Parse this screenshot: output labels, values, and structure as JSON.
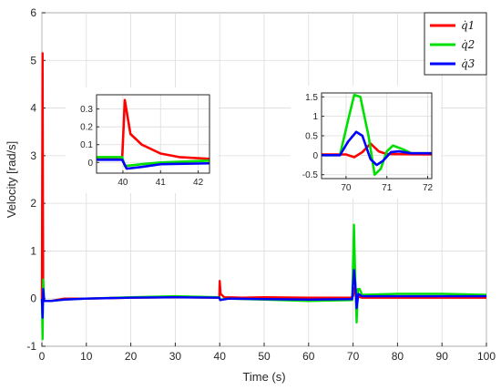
{
  "chart_data": {
    "type": "line",
    "xlabel": "Time (s)",
    "ylabel": "Velocity [rad/s]",
    "xlim": [
      0,
      100
    ],
    "ylim": [
      -1,
      6
    ],
    "xticks": [
      "0",
      "10",
      "20",
      "30",
      "40",
      "50",
      "60",
      "70",
      "80",
      "90",
      "100"
    ],
    "yticks": [
      "-1",
      "0",
      "1",
      "2",
      "3",
      "4",
      "5",
      "6"
    ],
    "grid": true,
    "legend_position": "top-right",
    "series": [
      {
        "name": "q̇1",
        "color": "#ff0000",
        "points": [
          [
            0,
            0
          ],
          [
            0.15,
            5.15
          ],
          [
            0.3,
            0
          ],
          [
            0.6,
            -0.05
          ],
          [
            2,
            -0.05
          ],
          [
            5,
            0.0
          ],
          [
            10,
            0.0
          ],
          [
            20,
            0.02
          ],
          [
            30,
            0.03
          ],
          [
            39.9,
            0.02
          ],
          [
            40.0,
            0.37
          ],
          [
            40.2,
            0.1
          ],
          [
            41,
            0.03
          ],
          [
            45,
            0.02
          ],
          [
            50,
            0.03
          ],
          [
            60,
            0.02
          ],
          [
            69.5,
            0.02
          ],
          [
            70.0,
            0.05
          ],
          [
            70.5,
            0.25
          ],
          [
            71,
            0.05
          ],
          [
            72,
            0.02
          ],
          [
            80,
            0.02
          ],
          [
            90,
            0.02
          ],
          [
            100,
            0.02
          ]
        ]
      },
      {
        "name": "q̇2",
        "color": "#00e000",
        "points": [
          [
            0,
            0
          ],
          [
            0.15,
            -0.85
          ],
          [
            0.3,
            0.4
          ],
          [
            0.5,
            -0.05
          ],
          [
            2,
            -0.05
          ],
          [
            5,
            -0.02
          ],
          [
            10,
            0.0
          ],
          [
            20,
            0.03
          ],
          [
            30,
            0.05
          ],
          [
            39.9,
            0.03
          ],
          [
            40.1,
            -0.02
          ],
          [
            42,
            0.0
          ],
          [
            50,
            -0.02
          ],
          [
            60,
            -0.05
          ],
          [
            69.8,
            -0.03
          ],
          [
            70.2,
            1.55
          ],
          [
            70.5,
            0.4
          ],
          [
            70.8,
            -0.5
          ],
          [
            71.1,
            0.2
          ],
          [
            71.5,
            0.2
          ],
          [
            72,
            0.08
          ],
          [
            80,
            0.1
          ],
          [
            90,
            0.1
          ],
          [
            100,
            0.08
          ]
        ]
      },
      {
        "name": "q̇3",
        "color": "#0000ff",
        "points": [
          [
            0,
            0
          ],
          [
            0.15,
            -0.4
          ],
          [
            0.3,
            0.2
          ],
          [
            0.5,
            -0.05
          ],
          [
            2,
            -0.05
          ],
          [
            5,
            -0.02
          ],
          [
            10,
            0.0
          ],
          [
            20,
            0.02
          ],
          [
            30,
            0.03
          ],
          [
            39.9,
            0.02
          ],
          [
            40.1,
            -0.03
          ],
          [
            42,
            0.0
          ],
          [
            50,
            -0.01
          ],
          [
            60,
            -0.02
          ],
          [
            69.8,
            -0.01
          ],
          [
            70.2,
            0.6
          ],
          [
            70.5,
            0.3
          ],
          [
            70.8,
            -0.2
          ],
          [
            71.2,
            0.1
          ],
          [
            72,
            0.05
          ],
          [
            80,
            0.05
          ],
          [
            90,
            0.05
          ],
          [
            100,
            0.05
          ]
        ]
      }
    ],
    "insets": [
      {
        "xlim": [
          39.3,
          42.3
        ],
        "ylim": [
          -0.06,
          0.38
        ],
        "xticks": [
          "40",
          "41",
          "42"
        ],
        "yticks": [
          "0",
          "0.1",
          "0.2",
          "0.3"
        ],
        "series": [
          {
            "name": "q̇1",
            "color": "#ff0000",
            "points": [
              [
                39.3,
                0.02
              ],
              [
                39.98,
                0.02
              ],
              [
                40.05,
                0.35
              ],
              [
                40.2,
                0.16
              ],
              [
                40.5,
                0.1
              ],
              [
                41,
                0.05
              ],
              [
                41.5,
                0.03
              ],
              [
                42.3,
                0.02
              ]
            ]
          },
          {
            "name": "q̇2",
            "color": "#00e000",
            "points": [
              [
                39.3,
                0.03
              ],
              [
                39.98,
                0.03
              ],
              [
                40.05,
                -0.02
              ],
              [
                40.5,
                -0.01
              ],
              [
                41,
                0.0
              ],
              [
                42.3,
                0.01
              ]
            ]
          },
          {
            "name": "q̇3",
            "color": "#0000ff",
            "points": [
              [
                39.3,
                0.015
              ],
              [
                39.98,
                0.015
              ],
              [
                40.1,
                -0.035
              ],
              [
                40.5,
                -0.025
              ],
              [
                41,
                -0.01
              ],
              [
                42.3,
                -0.005
              ]
            ]
          }
        ]
      },
      {
        "xlim": [
          69.4,
          72.1
        ],
        "ylim": [
          -0.6,
          1.6
        ],
        "xticks": [
          "70",
          "71",
          "72"
        ],
        "yticks": [
          "-0.5",
          "0",
          "0.5",
          "1",
          "1.5"
        ],
        "series": [
          {
            "name": "q̇1",
            "color": "#ff0000",
            "points": [
              [
                69.4,
                0.02
              ],
              [
                70.0,
                0.02
              ],
              [
                70.2,
                -0.05
              ],
              [
                70.4,
                0.08
              ],
              [
                70.6,
                0.3
              ],
              [
                70.8,
                0.1
              ],
              [
                71.0,
                0.03
              ],
              [
                72.1,
                0.02
              ]
            ]
          },
          {
            "name": "q̇2",
            "color": "#00e000",
            "points": [
              [
                69.4,
                0.0
              ],
              [
                69.85,
                0.0
              ],
              [
                70.05,
                0.9
              ],
              [
                70.2,
                1.55
              ],
              [
                70.35,
                1.5
              ],
              [
                70.55,
                0.5
              ],
              [
                70.7,
                -0.5
              ],
              [
                70.85,
                -0.35
              ],
              [
                71.0,
                0.1
              ],
              [
                71.15,
                0.25
              ],
              [
                71.4,
                0.15
              ],
              [
                71.6,
                0.05
              ],
              [
                72.1,
                0.05
              ]
            ]
          },
          {
            "name": "q̇3",
            "color": "#0000ff",
            "points": [
              [
                69.4,
                0.0
              ],
              [
                69.85,
                0.0
              ],
              [
                70.05,
                0.35
              ],
              [
                70.25,
                0.6
              ],
              [
                70.4,
                0.5
              ],
              [
                70.6,
                -0.1
              ],
              [
                70.75,
                -0.25
              ],
              [
                70.9,
                -0.15
              ],
              [
                71.1,
                0.08
              ],
              [
                71.3,
                0.1
              ],
              [
                71.6,
                0.05
              ],
              [
                72.1,
                0.05
              ]
            ]
          }
        ]
      }
    ]
  }
}
